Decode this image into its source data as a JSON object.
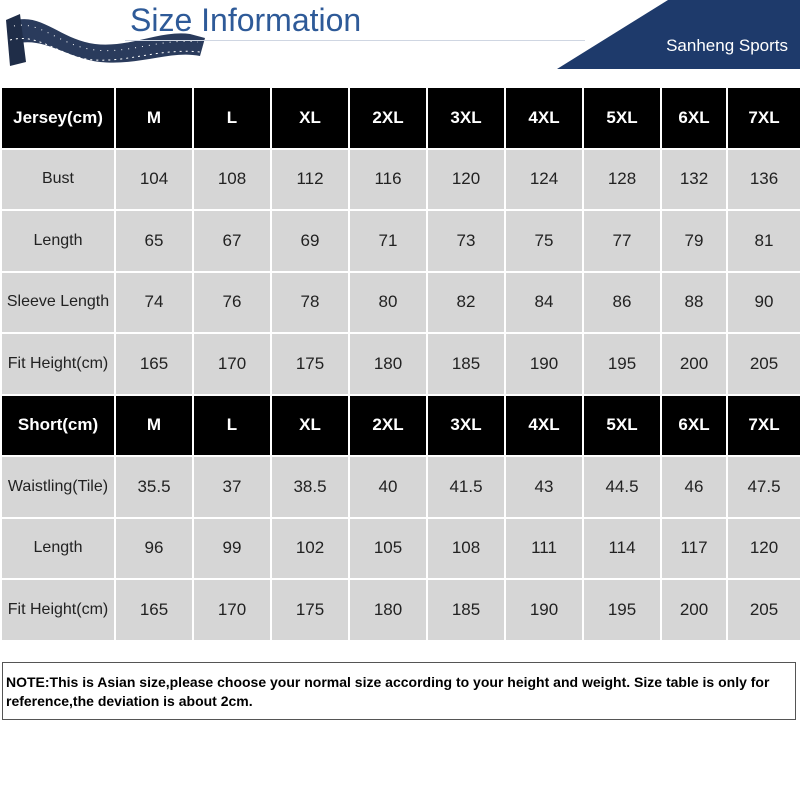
{
  "header": {
    "title": "Size Information",
    "brand": "Sanheng Sports",
    "brand_color": "#1e3a6b",
    "title_color": "#2e5a98"
  },
  "jersey": {
    "header": [
      "Jersey(cm)",
      "M",
      "L",
      "XL",
      "2XL",
      "3XL",
      "4XL",
      "5XL",
      "6XL",
      "7XL"
    ],
    "rows": [
      [
        "Bust",
        "104",
        "108",
        "112",
        "116",
        "120",
        "124",
        "128",
        "132",
        "136"
      ],
      [
        "Length",
        "65",
        "67",
        "69",
        "71",
        "73",
        "75",
        "77",
        "79",
        "81"
      ],
      [
        "Sleeve Length",
        "74",
        "76",
        "78",
        "80",
        "82",
        "84",
        "86",
        "88",
        "90"
      ],
      [
        "Fit Height(cm)",
        "165",
        "170",
        "175",
        "180",
        "185",
        "190",
        "195",
        "200",
        "205"
      ]
    ]
  },
  "short": {
    "header": [
      "Short(cm)",
      "M",
      "L",
      "XL",
      "2XL",
      "3XL",
      "4XL",
      "5XL",
      "6XL",
      "7XL"
    ],
    "rows": [
      [
        "Waistling(Tile)",
        "35.5",
        "37",
        "38.5",
        "40",
        "41.5",
        "43",
        "44.5",
        "46",
        "47.5"
      ],
      [
        "Length",
        "96",
        "99",
        "102",
        "105",
        "108",
        "111",
        "114",
        "117",
        "120"
      ],
      [
        "Fit Height(cm)",
        "165",
        "170",
        "175",
        "180",
        "185",
        "190",
        "195",
        "200",
        "205"
      ]
    ]
  },
  "note": "NOTE:This is Asian size,please choose your normal size according to your height and weight. Size table is only for reference,the deviation is about 2cm."
}
